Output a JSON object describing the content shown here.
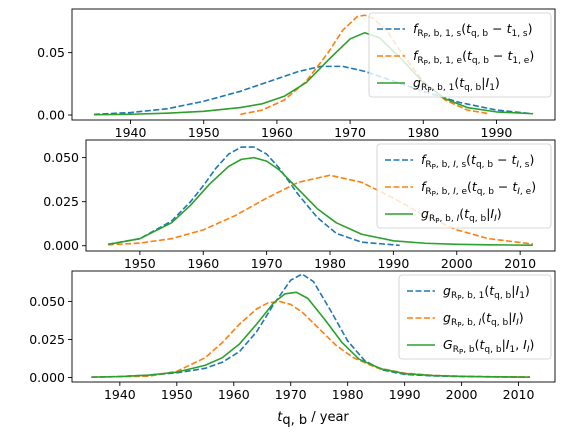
{
  "figure": {
    "xlabel_html": "<tspan font-style='italic'>t</tspan><tspan class='sub' dy='3'>q, b</tspan><tspan dy='-3'> / year</tspan>",
    "xlabel_text": "t_{q,b} / year"
  },
  "chart_data": [
    {
      "type": "line",
      "title": "",
      "xlabel": "",
      "ylabel": "",
      "xlim": [
        1932,
        1998
      ],
      "ylim": [
        -0.004,
        0.085
      ],
      "xticks": [
        1940,
        1950,
        1960,
        1970,
        1980,
        1990
      ],
      "yticks": [
        0.0,
        0.05
      ],
      "ytick_labels": [
        "0.00",
        "0.05"
      ],
      "grid": false,
      "legend_position": "top-right",
      "series": [
        {
          "name": "f_{R_P,b,1,s}(t_{q,b} - t_{1,s})",
          "legend_html": "<tspan font-style='italic'>f</tspan><tspan class='sub' dy='3'>R<tspan class='subsub' dy='2'>P</tspan><tspan dy='-2'>, b, 1, s</tspan></tspan><tspan dy='-3'>(</tspan><tspan font-style='italic'>t</tspan><tspan class='sub' dy='3'>q, b</tspan><tspan dy='-3'> − </tspan><tspan font-style='italic'>t</tspan><tspan class='sub' dy='3'>1, s</tspan><tspan dy='-3'>)</tspan>",
          "color": "#1f77b4",
          "dash": true,
          "x": [
            1935,
            1940,
            1945,
            1950,
            1955,
            1960,
            1963,
            1966,
            1969,
            1972,
            1975,
            1980,
            1985,
            1990,
            1995
          ],
          "y": [
            0.0005,
            0.002,
            0.005,
            0.011,
            0.019,
            0.029,
            0.035,
            0.039,
            0.039,
            0.035,
            0.029,
            0.019,
            0.01,
            0.004,
            0.001
          ]
        },
        {
          "name": "f_{R_P,b,1,e}(t_{q,b} - t_{1,e})",
          "legend_html": "<tspan font-style='italic'>f</tspan><tspan class='sub' dy='3'>R<tspan class='subsub' dy='2'>P</tspan><tspan dy='-2'>, b, 1, e</tspan></tspan><tspan dy='-3'>(</tspan><tspan font-style='italic'>t</tspan><tspan class='sub' dy='3'>q, b</tspan><tspan dy='-3'> − </tspan><tspan font-style='italic'>t</tspan><tspan class='sub' dy='3'>1, e</tspan><tspan dy='-3'>)</tspan>",
          "color": "#ff7f0e",
          "dash": true,
          "x": [
            1955,
            1958,
            1961,
            1964,
            1967,
            1969,
            1971,
            1972,
            1973,
            1975,
            1977,
            1980,
            1983,
            1986,
            1989
          ],
          "y": [
            0.0005,
            0.004,
            0.012,
            0.027,
            0.05,
            0.068,
            0.079,
            0.08,
            0.078,
            0.068,
            0.05,
            0.027,
            0.012,
            0.004,
            0.001
          ]
        },
        {
          "name": "g_{R_P,b,1}(t_{q,b}|I_1)",
          "legend_html": "<tspan font-style='italic'>g</tspan><tspan class='sub' dy='3'>R<tspan class='subsub' dy='2'>P</tspan><tspan dy='-2'>, b, 1</tspan></tspan><tspan dy='-3'>(</tspan><tspan font-style='italic'>t</tspan><tspan class='sub' dy='3'>q, b</tspan><tspan dy='-3'>|</tspan><tspan font-style='italic'>I</tspan><tspan class='sub' dy='3'>1</tspan><tspan dy='-3'>)</tspan>",
          "color": "#2ca02c",
          "dash": false,
          "x": [
            1935,
            1940,
            1945,
            1950,
            1955,
            1958,
            1961,
            1964,
            1967,
            1970,
            1972,
            1974,
            1977,
            1980,
            1983,
            1986,
            1990,
            1995
          ],
          "y": [
            0.0002,
            0.0006,
            0.0015,
            0.003,
            0.006,
            0.009,
            0.015,
            0.026,
            0.044,
            0.061,
            0.066,
            0.062,
            0.045,
            0.026,
            0.013,
            0.006,
            0.0025,
            0.001
          ]
        }
      ]
    },
    {
      "type": "line",
      "title": "",
      "xlabel": "",
      "ylabel": "",
      "xlim": [
        1941.5,
        2015.5
      ],
      "ylim": [
        -0.003,
        0.06
      ],
      "xticks": [
        1950,
        1960,
        1970,
        1980,
        1990,
        2000,
        2010
      ],
      "yticks": [
        0.0,
        0.025,
        0.05
      ],
      "ytick_labels": [
        "0.000",
        "0.025",
        "0.050"
      ],
      "grid": false,
      "legend_position": "top-right",
      "series": [
        {
          "name": "f_{R_P,b,I,s}(t_{q,b} - t_{I,s})",
          "legend_html": "<tspan font-style='italic'>f</tspan><tspan class='sub' dy='3'>R<tspan class='subsub' dy='2'>P</tspan><tspan dy='-2'>, b, </tspan><tspan font-style='italic'>I</tspan><tspan>, s</tspan></tspan><tspan dy='-3'>(</tspan><tspan font-style='italic'>t</tspan><tspan class='sub' dy='3'>q, b</tspan><tspan dy='-3'> − </tspan><tspan font-style='italic'>t</tspan><tspan class='sub' dy='3'><tspan font-style='italic'>I</tspan>, s</tspan><tspan dy='-3'>)</tspan>",
          "color": "#1f77b4",
          "dash": true,
          "x": [
            1945,
            1950,
            1955,
            1958,
            1960,
            1962,
            1964,
            1966,
            1968,
            1970,
            1972,
            1975,
            1978,
            1981,
            1985,
            1991
          ],
          "y": [
            0.0008,
            0.004,
            0.014,
            0.025,
            0.034,
            0.044,
            0.052,
            0.056,
            0.056,
            0.052,
            0.044,
            0.029,
            0.016,
            0.007,
            0.002,
            0.0002
          ]
        },
        {
          "name": "f_{R_P,b,I,e}(t_{q,b} - t_{I,e})",
          "legend_html": "<tspan font-style='italic'>f</tspan><tspan class='sub' dy='3'>R<tspan class='subsub' dy='2'>P</tspan><tspan dy='-2'>, b, </tspan><tspan font-style='italic'>I</tspan><tspan>, e</tspan></tspan><tspan dy='-3'>(</tspan><tspan font-style='italic'>t</tspan><tspan class='sub' dy='3'>q, b</tspan><tspan dy='-3'> − </tspan><tspan font-style='italic'>t</tspan><tspan class='sub' dy='3'><tspan font-style='italic'>I</tspan>, e</tspan><tspan dy='-3'>)</tspan>",
          "color": "#ff7f0e",
          "dash": true,
          "x": [
            1945,
            1950,
            1955,
            1960,
            1965,
            1970,
            1975,
            1980,
            1985,
            1990,
            1995,
            2000,
            2005,
            2012
          ],
          "y": [
            0.0005,
            0.0015,
            0.004,
            0.009,
            0.017,
            0.027,
            0.036,
            0.04,
            0.036,
            0.027,
            0.017,
            0.009,
            0.004,
            0.001
          ]
        },
        {
          "name": "g_{R_P,b,I}(t_{q,b}|I_I)",
          "legend_html": "<tspan font-style='italic'>g</tspan><tspan class='sub' dy='3'>R<tspan class='subsub' dy='2'>P</tspan><tspan dy='-2'>, b, </tspan><tspan font-style='italic'>I</tspan></tspan><tspan dy='-3'>(</tspan><tspan font-style='italic'>t</tspan><tspan class='sub' dy='3'>q, b</tspan><tspan dy='-3'>|</tspan><tspan font-style='italic'>I</tspan><tspan class='sub' dy='3'><tspan font-style='italic'>I</tspan></tspan><tspan dy='-3'>)</tspan>",
          "color": "#2ca02c",
          "dash": false,
          "x": [
            1945,
            1950,
            1955,
            1958,
            1961,
            1964,
            1966,
            1968,
            1970,
            1972,
            1975,
            1978,
            1981,
            1985,
            1990,
            1995,
            2000,
            2005,
            2012
          ],
          "y": [
            0.0008,
            0.004,
            0.013,
            0.023,
            0.035,
            0.045,
            0.049,
            0.05,
            0.048,
            0.043,
            0.032,
            0.021,
            0.013,
            0.0065,
            0.0028,
            0.0014,
            0.0008,
            0.0005,
            0.0003
          ]
        }
      ]
    },
    {
      "type": "line",
      "title": "",
      "xlabel": "t_{q,b} / year",
      "ylabel": "",
      "xlim": [
        1931.6,
        2016.4
      ],
      "ylim": [
        -0.003,
        0.07
      ],
      "xticks": [
        1940,
        1950,
        1960,
        1970,
        1980,
        1990,
        2000,
        2010
      ],
      "yticks": [
        0.0,
        0.025,
        0.05
      ],
      "ytick_labels": [
        "0.000",
        "0.025",
        "0.050"
      ],
      "grid": false,
      "legend_position": "top-right",
      "series": [
        {
          "name": "g_{R_P,b,1}(t_{q,b}|I_1)",
          "legend_html": "<tspan font-style='italic'>g</tspan><tspan class='sub' dy='3'>R<tspan class='subsub' dy='2'>P</tspan><tspan dy='-2'>, b, 1</tspan></tspan><tspan dy='-3'>(</tspan><tspan font-style='italic'>t</tspan><tspan class='sub' dy='3'>q, b</tspan><tspan dy='-3'>|</tspan><tspan font-style='italic'>I</tspan><tspan class='sub' dy='3'>1</tspan><tspan dy='-3'>)</tspan>",
          "color": "#1f77b4",
          "dash": true,
          "x": [
            1935,
            1940,
            1945,
            1950,
            1955,
            1958,
            1961,
            1964,
            1967,
            1970,
            1972,
            1974,
            1977,
            1980,
            1983,
            1986,
            1990,
            1995,
            2000,
            2005,
            2012
          ],
          "y": [
            0.0002,
            0.0006,
            0.0015,
            0.003,
            0.006,
            0.01,
            0.017,
            0.03,
            0.048,
            0.064,
            0.068,
            0.063,
            0.044,
            0.024,
            0.011,
            0.005,
            0.002,
            0.001,
            0.0006,
            0.0004,
            0.0002
          ]
        },
        {
          "name": "g_{R_P,b,I}(t_{q,b}|I_I)",
          "legend_html": "<tspan font-style='italic'>g</tspan><tspan class='sub' dy='3'>R<tspan class='subsub' dy='2'>P</tspan><tspan dy='-2'>, b, </tspan><tspan font-style='italic'>I</tspan></tspan><tspan dy='-3'>(</tspan><tspan font-style='italic'>t</tspan><tspan class='sub' dy='3'>q, b</tspan><tspan dy='-3'>|</tspan><tspan font-style='italic'>I</tspan><tspan class='sub' dy='3'><tspan font-style='italic'>I</tspan></tspan><tspan dy='-3'>)</tspan>",
          "color": "#ff7f0e",
          "dash": true,
          "x": [
            1935,
            1945,
            1950,
            1955,
            1958,
            1961,
            1964,
            1966,
            1968,
            1970,
            1972,
            1975,
            1978,
            1981,
            1985,
            1990,
            1995,
            2000,
            2005,
            2012
          ],
          "y": [
            0.0002,
            0.0008,
            0.004,
            0.013,
            0.023,
            0.035,
            0.045,
            0.049,
            0.05,
            0.048,
            0.043,
            0.032,
            0.021,
            0.013,
            0.0065,
            0.0028,
            0.0014,
            0.0008,
            0.0005,
            0.0003
          ]
        },
        {
          "name": "G_{R_P,b}(t_{q,b}|I_1, I_I)",
          "legend_html": "<tspan font-style='italic'>G</tspan><tspan class='sub' dy='3'>R<tspan class='subsub' dy='2'>P</tspan><tspan dy='-2'>, b</tspan></tspan><tspan dy='-3'>(</tspan><tspan font-style='italic'>t</tspan><tspan class='sub' dy='3'>q, b</tspan><tspan dy='-3'>|</tspan><tspan font-style='italic'>I</tspan><tspan class='sub' dy='3'>1</tspan><tspan dy='-3'>, </tspan><tspan font-style='italic'>I</tspan><tspan class='sub' dy='3'><tspan font-style='italic'>I</tspan></tspan><tspan dy='-3'>)</tspan>",
          "color": "#2ca02c",
          "dash": false,
          "x": [
            1935,
            1940,
            1945,
            1950,
            1955,
            1958,
            1961,
            1964,
            1967,
            1969,
            1971,
            1973,
            1976,
            1979,
            1982,
            1986,
            1990,
            1995,
            2000,
            2005,
            2012
          ],
          "y": [
            0.0002,
            0.0006,
            0.0015,
            0.0035,
            0.008,
            0.013,
            0.022,
            0.035,
            0.049,
            0.055,
            0.056,
            0.052,
            0.038,
            0.023,
            0.012,
            0.0055,
            0.0025,
            0.0012,
            0.0007,
            0.0004,
            0.0002
          ]
        }
      ]
    }
  ]
}
